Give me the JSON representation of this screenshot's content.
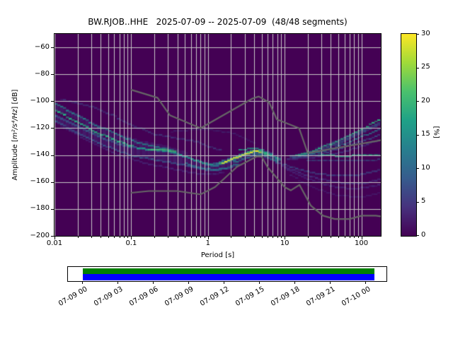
{
  "chart_data": {
    "type": "heatmap",
    "title": "BW.RJOB..HHE   2025-07-09 -- 2025-07-09  (48/48 segments)",
    "xlabel": "Period [s]",
    "ylabel_parts": {
      "prefix": "Amplitude [",
      "math": "m²/s⁴/Hz",
      "suffix": "] [dB]"
    },
    "xscale": "log",
    "xlim": [
      0.01,
      179
    ],
    "ylim": [
      -200,
      -50
    ],
    "xticks": [
      {
        "value": 0.01,
        "label": "0.01"
      },
      {
        "value": 0.1,
        "label": "0.1"
      },
      {
        "value": 1,
        "label": "1"
      },
      {
        "value": 10,
        "label": "10"
      },
      {
        "value": 100,
        "label": "100"
      }
    ],
    "yticks": [
      {
        "value": -60,
        "label": "−60"
      },
      {
        "value": -80,
        "label": "−80"
      },
      {
        "value": -100,
        "label": "−100"
      },
      {
        "value": -120,
        "label": "−120"
      },
      {
        "value": -140,
        "label": "−140"
      },
      {
        "value": -160,
        "label": "−160"
      },
      {
        "value": -180,
        "label": "−180"
      },
      {
        "value": -200,
        "label": "−200"
      }
    ],
    "grid": {
      "color": "#c6c6c6"
    },
    "background_color": "#440154",
    "colorbar": {
      "label": "[%]",
      "min": 0,
      "max": 30,
      "ticks": [
        0,
        5,
        10,
        15,
        20,
        25,
        30
      ],
      "colormap": "viridis",
      "stops": [
        "#440154",
        "#46327e",
        "#365c8d",
        "#277f8e",
        "#1fa187",
        "#4ac16d",
        "#a0da39",
        "#fde725"
      ]
    },
    "noise_models": {
      "color": "#666666",
      "high": [
        [
          0.1,
          -91.5
        ],
        [
          0.22,
          -97.4
        ],
        [
          0.32,
          -110.5
        ],
        [
          0.8,
          -120
        ],
        [
          3.8,
          -98
        ],
        [
          4.6,
          -96.5
        ],
        [
          6.3,
          -101
        ],
        [
          7.9,
          -113.5
        ],
        [
          15.4,
          -120
        ],
        [
          20,
          -138.5
        ],
        [
          179,
          -129
        ]
      ],
      "low": [
        [
          0.1,
          -168
        ],
        [
          0.17,
          -166.7
        ],
        [
          0.4,
          -166.7
        ],
        [
          0.8,
          -169.2
        ],
        [
          1.24,
          -163.7
        ],
        [
          2.4,
          -148.6
        ],
        [
          4.3,
          -141.1
        ],
        [
          5,
          -141.1
        ],
        [
          6,
          -149
        ],
        [
          10,
          -163.8
        ],
        [
          12,
          -166.2
        ],
        [
          15.6,
          -162.1
        ],
        [
          21.9,
          -177.5
        ],
        [
          31.6,
          -185
        ],
        [
          45,
          -187.5
        ],
        [
          70,
          -187.5
        ],
        [
          101,
          -185
        ],
        [
          154,
          -185
        ],
        [
          179,
          -185.5
        ]
      ]
    },
    "density_strands": [
      {
        "color": "#46327e",
        "width": 13,
        "alpha": 0.5,
        "points": [
          [
            0.01,
            -112
          ],
          [
            0.02,
            -121
          ],
          [
            0.05,
            -131
          ],
          [
            0.1,
            -137
          ],
          [
            0.2,
            -139
          ],
          [
            0.4,
            -143
          ],
          [
            0.8,
            -148
          ],
          [
            1.2,
            -149.5
          ],
          [
            2,
            -144.5
          ],
          [
            3.2,
            -139.5
          ],
          [
            4.5,
            -138
          ],
          [
            6,
            -140
          ],
          [
            8,
            -143.5
          ]
        ]
      },
      {
        "color": "#453781",
        "width": 9,
        "alpha": 0.45,
        "points": [
          [
            0.01,
            -103
          ],
          [
            0.02,
            -112
          ],
          [
            0.05,
            -124
          ],
          [
            0.12,
            -131
          ],
          [
            0.25,
            -134.5
          ],
          [
            0.5,
            -139.5
          ]
        ]
      },
      {
        "color": "#3f4d8a",
        "width": 2.4,
        "alpha": 0.6,
        "points": [
          [
            0.012,
            -98.5
          ],
          [
            0.03,
            -104
          ],
          [
            0.06,
            -111
          ],
          [
            0.1,
            -117.5
          ],
          [
            0.2,
            -124.5
          ],
          [
            0.4,
            -127.5
          ],
          [
            0.7,
            -130
          ],
          [
            1.0,
            -133.5
          ],
          [
            1.5,
            -136.5
          ]
        ]
      },
      {
        "color": "#3e4989",
        "width": 2,
        "alpha": 0.4,
        "points": [
          [
            0.35,
            -122.5
          ],
          [
            0.7,
            -120.8
          ],
          [
            1.2,
            -121.5
          ],
          [
            2,
            -123.5
          ],
          [
            3,
            -127.5
          ],
          [
            4.2,
            -131.5
          ]
        ]
      },
      {
        "color": "#33638d",
        "width": 3,
        "alpha": 0.8,
        "points": [
          [
            0.01,
            -110
          ],
          [
            0.02,
            -119
          ],
          [
            0.04,
            -127
          ],
          [
            0.08,
            -133
          ],
          [
            0.15,
            -135.5
          ],
          [
            0.3,
            -137.5
          ],
          [
            0.5,
            -141
          ],
          [
            0.8,
            -145.5
          ],
          [
            1.1,
            -147.5
          ]
        ]
      },
      {
        "color": "#25ac82",
        "width": 2.8,
        "alpha": 0.95,
        "points": [
          [
            0.01,
            -106.5
          ],
          [
            0.014,
            -111
          ],
          [
            0.022,
            -117
          ],
          [
            0.035,
            -123
          ],
          [
            0.06,
            -128.5
          ],
          [
            0.1,
            -133
          ]
        ]
      },
      {
        "color": "#21918c",
        "width": 2.4,
        "alpha": 0.8,
        "points": [
          [
            0.01,
            -101
          ],
          [
            0.016,
            -108
          ],
          [
            0.03,
            -116
          ],
          [
            0.06,
            -124
          ],
          [
            0.12,
            -130.5
          ],
          [
            0.2,
            -133.5
          ],
          [
            0.35,
            -136.5
          ]
        ]
      },
      {
        "color": "#355f8d",
        "width": 2.6,
        "alpha": 0.8,
        "points": [
          [
            0.01,
            -114
          ],
          [
            0.02,
            -124
          ],
          [
            0.05,
            -134
          ],
          [
            0.1,
            -140.5
          ],
          [
            0.2,
            -143.5
          ],
          [
            0.4,
            -146.5
          ],
          [
            0.7,
            -149.5
          ],
          [
            1.1,
            -151.5
          ],
          [
            1.8,
            -150
          ],
          [
            2.6,
            -147
          ]
        ]
      },
      {
        "color": "#46327e",
        "width": 2.4,
        "alpha": 0.7,
        "points": [
          [
            0.012,
            -119
          ],
          [
            0.03,
            -130
          ],
          [
            0.07,
            -140
          ],
          [
            0.15,
            -146
          ],
          [
            0.3,
            -149.5
          ],
          [
            0.6,
            -153
          ],
          [
            1,
            -154.5
          ],
          [
            1.6,
            -153
          ]
        ]
      },
      {
        "color": "#1fa188",
        "width": 2.6,
        "alpha": 0.9,
        "points": [
          [
            0.12,
            -135
          ],
          [
            0.2,
            -136
          ],
          [
            0.3,
            -136.8
          ],
          [
            0.45,
            -140
          ],
          [
            0.65,
            -143.5
          ],
          [
            0.9,
            -146
          ],
          [
            1.2,
            -147.5
          ]
        ]
      },
      {
        "color": "#44bf70",
        "width": 2.2,
        "alpha": 0.85,
        "points": [
          [
            0.17,
            -136.3
          ],
          [
            0.26,
            -136.0
          ],
          [
            0.37,
            -137.3
          ]
        ]
      },
      {
        "color": "#27808e",
        "width": 2.2,
        "alpha": 0.85,
        "points": [
          [
            0.5,
            -146
          ],
          [
            0.8,
            -149.5
          ],
          [
            1.2,
            -151
          ],
          [
            1.8,
            -149.5
          ],
          [
            2.4,
            -146.5
          ]
        ]
      },
      {
        "color": "#2d708e",
        "width": 6,
        "alpha": 0.9,
        "points": [
          [
            1.2,
            -147.5
          ],
          [
            2,
            -143.5
          ],
          [
            3,
            -139.5
          ],
          [
            4,
            -137.8
          ],
          [
            5,
            -137.8
          ],
          [
            6,
            -139.2
          ],
          [
            7.5,
            -142
          ],
          [
            9,
            -144
          ]
        ]
      },
      {
        "color": "#3dbc74",
        "width": 3,
        "alpha": 0.95,
        "points": [
          [
            1.5,
            -146
          ],
          [
            2.2,
            -142
          ],
          [
            3,
            -139
          ],
          [
            3.7,
            -137.2
          ],
          [
            4.6,
            -137
          ],
          [
            5.5,
            -138.4
          ],
          [
            6.5,
            -140.6
          ]
        ]
      },
      {
        "color": "#fde725",
        "width": 2,
        "alpha": 1,
        "points": [
          [
            1.55,
            -146.3
          ],
          [
            2.1,
            -142.8
          ],
          [
            2.7,
            -140.6
          ],
          [
            3.3,
            -138.8
          ],
          [
            3.9,
            -137.4
          ],
          [
            4.5,
            -137.2
          ],
          [
            5.0,
            -138.0
          ]
        ]
      },
      {
        "color": "#21a585",
        "width": 2,
        "alpha": 0.9,
        "points": [
          [
            2.6,
            -136.2
          ],
          [
            3.4,
            -135.4
          ],
          [
            4.3,
            -135.3
          ],
          [
            5.2,
            -136.5
          ],
          [
            6.2,
            -138.9
          ],
          [
            7.4,
            -141.6
          ],
          [
            8.8,
            -143.4
          ]
        ]
      },
      {
        "color": "#238a8d",
        "width": 2,
        "alpha": 0.85,
        "points": [
          [
            2.2,
            -145.5
          ],
          [
            3,
            -142.5
          ],
          [
            4,
            -140.3
          ],
          [
            5,
            -140.0
          ],
          [
            6,
            -141.5
          ],
          [
            7.2,
            -144
          ],
          [
            8.5,
            -146
          ]
        ]
      },
      {
        "color": "#31688e",
        "width": 4.5,
        "alpha": 0.65,
        "points": [
          [
            12,
            -141.5
          ],
          [
            20,
            -139
          ],
          [
            35,
            -134.5
          ],
          [
            60,
            -129
          ],
          [
            100,
            -123
          ],
          [
            179,
            -116.5
          ]
        ]
      },
      {
        "color": "#2cb17e",
        "width": 2.2,
        "alpha": 0.95,
        "points": [
          [
            14,
            -140.5
          ],
          [
            20,
            -138.5
          ],
          [
            30,
            -134.5
          ],
          [
            50,
            -129
          ],
          [
            80,
            -124
          ],
          [
            120,
            -118.5
          ],
          [
            179,
            -113.5
          ]
        ]
      },
      {
        "color": "#27808e",
        "width": 2.2,
        "alpha": 0.85,
        "points": [
          [
            16,
            -140.5
          ],
          [
            30,
            -137.5
          ],
          [
            55,
            -132.5
          ],
          [
            90,
            -127.5
          ],
          [
            140,
            -123
          ],
          [
            179,
            -120.5
          ]
        ]
      },
      {
        "color": "#375a8c",
        "width": 2.2,
        "alpha": 0.8,
        "points": [
          [
            13,
            -142
          ],
          [
            25,
            -140
          ],
          [
            50,
            -135.5
          ],
          [
            90,
            -130.5
          ],
          [
            140,
            -127
          ],
          [
            179,
            -124.5
          ]
        ]
      },
      {
        "color": "#414487",
        "width": 2.4,
        "alpha": 0.7,
        "points": [
          [
            11,
            -143
          ],
          [
            25,
            -141.5
          ],
          [
            60,
            -137.5
          ],
          [
            110,
            -132.5
          ],
          [
            179,
            -128.5
          ]
        ]
      },
      {
        "color": "#3e4989",
        "width": 2,
        "alpha": 0.5,
        "points": [
          [
            25,
            -135
          ],
          [
            45,
            -130
          ],
          [
            80,
            -124.5
          ],
          [
            130,
            -119
          ],
          [
            179,
            -115.5
          ]
        ]
      },
      {
        "color": "#25ab81",
        "width": 2.2,
        "alpha": 0.9,
        "points": [
          [
            28,
            -140.3
          ],
          [
            60,
            -140.6
          ],
          [
            110,
            -140.3
          ],
          [
            179,
            -140.2
          ]
        ]
      },
      {
        "color": "#33638d",
        "width": 2,
        "alpha": 0.6,
        "points": [
          [
            20,
            -143.5
          ],
          [
            60,
            -144.2
          ],
          [
            120,
            -143.8
          ],
          [
            179,
            -143.4
          ]
        ]
      },
      {
        "color": "#3c4f8a",
        "width": 2.4,
        "alpha": 0.75,
        "points": [
          [
            8,
            -145.5
          ],
          [
            14,
            -150
          ],
          [
            25,
            -153.5
          ],
          [
            50,
            -155.5
          ],
          [
            100,
            -154.5
          ],
          [
            179,
            -150.5
          ]
        ]
      },
      {
        "color": "#46327e",
        "width": 2.6,
        "alpha": 0.85,
        "points": [
          [
            9,
            -147.5
          ],
          [
            16,
            -153.5
          ],
          [
            30,
            -158
          ],
          [
            60,
            -161
          ],
          [
            110,
            -161.5
          ],
          [
            179,
            -157.5
          ]
        ]
      },
      {
        "color": "#472a7a",
        "width": 2.4,
        "alpha": 0.8,
        "points": [
          [
            10,
            -150
          ],
          [
            20,
            -157.5
          ],
          [
            40,
            -163
          ],
          [
            80,
            -165.5
          ],
          [
            179,
            -162
          ]
        ]
      },
      {
        "color": "#45327e",
        "width": 2,
        "alpha": 0.55,
        "points": [
          [
            12,
            -155
          ],
          [
            25,
            -165
          ],
          [
            50,
            -170
          ],
          [
            100,
            -171
          ],
          [
            179,
            -168
          ]
        ]
      }
    ]
  },
  "timeline": {
    "labels": [
      "07-09 00",
      "07-09 03",
      "07-09 06",
      "07-09 09",
      "07-09 12",
      "07-09 15",
      "07-09 18",
      "07-09 21",
      "07-10 00"
    ],
    "bar_top_color": "#008000",
    "bar_bottom_color": "#0000ff"
  }
}
